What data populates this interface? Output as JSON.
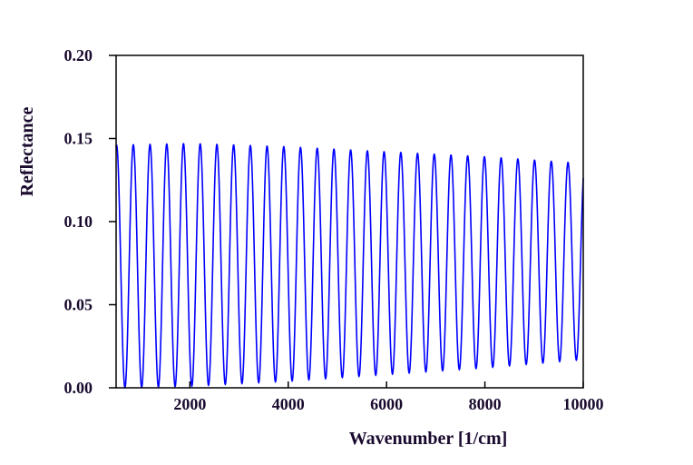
{
  "chart_data": {
    "type": "line",
    "title": "",
    "xlabel": "Wavenumber [1/cm]",
    "ylabel": "Reflectance",
    "xlim": [
      500,
      10000
    ],
    "ylim": [
      0.0,
      0.2
    ],
    "x_ticks": [
      2000,
      4000,
      6000,
      8000,
      10000
    ],
    "x_tick_labels": [
      "2000",
      "4000",
      "6000",
      "8000",
      "10000"
    ],
    "y_ticks": [
      0.0,
      0.05,
      0.1,
      0.15,
      0.2
    ],
    "y_tick_labels": [
      "0.00",
      "0.05",
      "0.10",
      "0.15",
      "0.20"
    ],
    "grid": false,
    "legend": "none",
    "line_color": "#0000ff",
    "series": [
      {
        "fringe_period": 340,
        "peak_envelope": {
          "x": [
            500,
            2000,
            4000,
            6000,
            8000,
            10000
          ],
          "y": [
            0.146,
            0.147,
            0.145,
            0.142,
            0.139,
            0.135
          ]
        },
        "trough_envelope": {
          "x": [
            500,
            2000,
            4000,
            6000,
            8000,
            10000
          ],
          "y": [
            0.0,
            0.001,
            0.004,
            0.008,
            0.012,
            0.017
          ]
        }
      }
    ]
  }
}
